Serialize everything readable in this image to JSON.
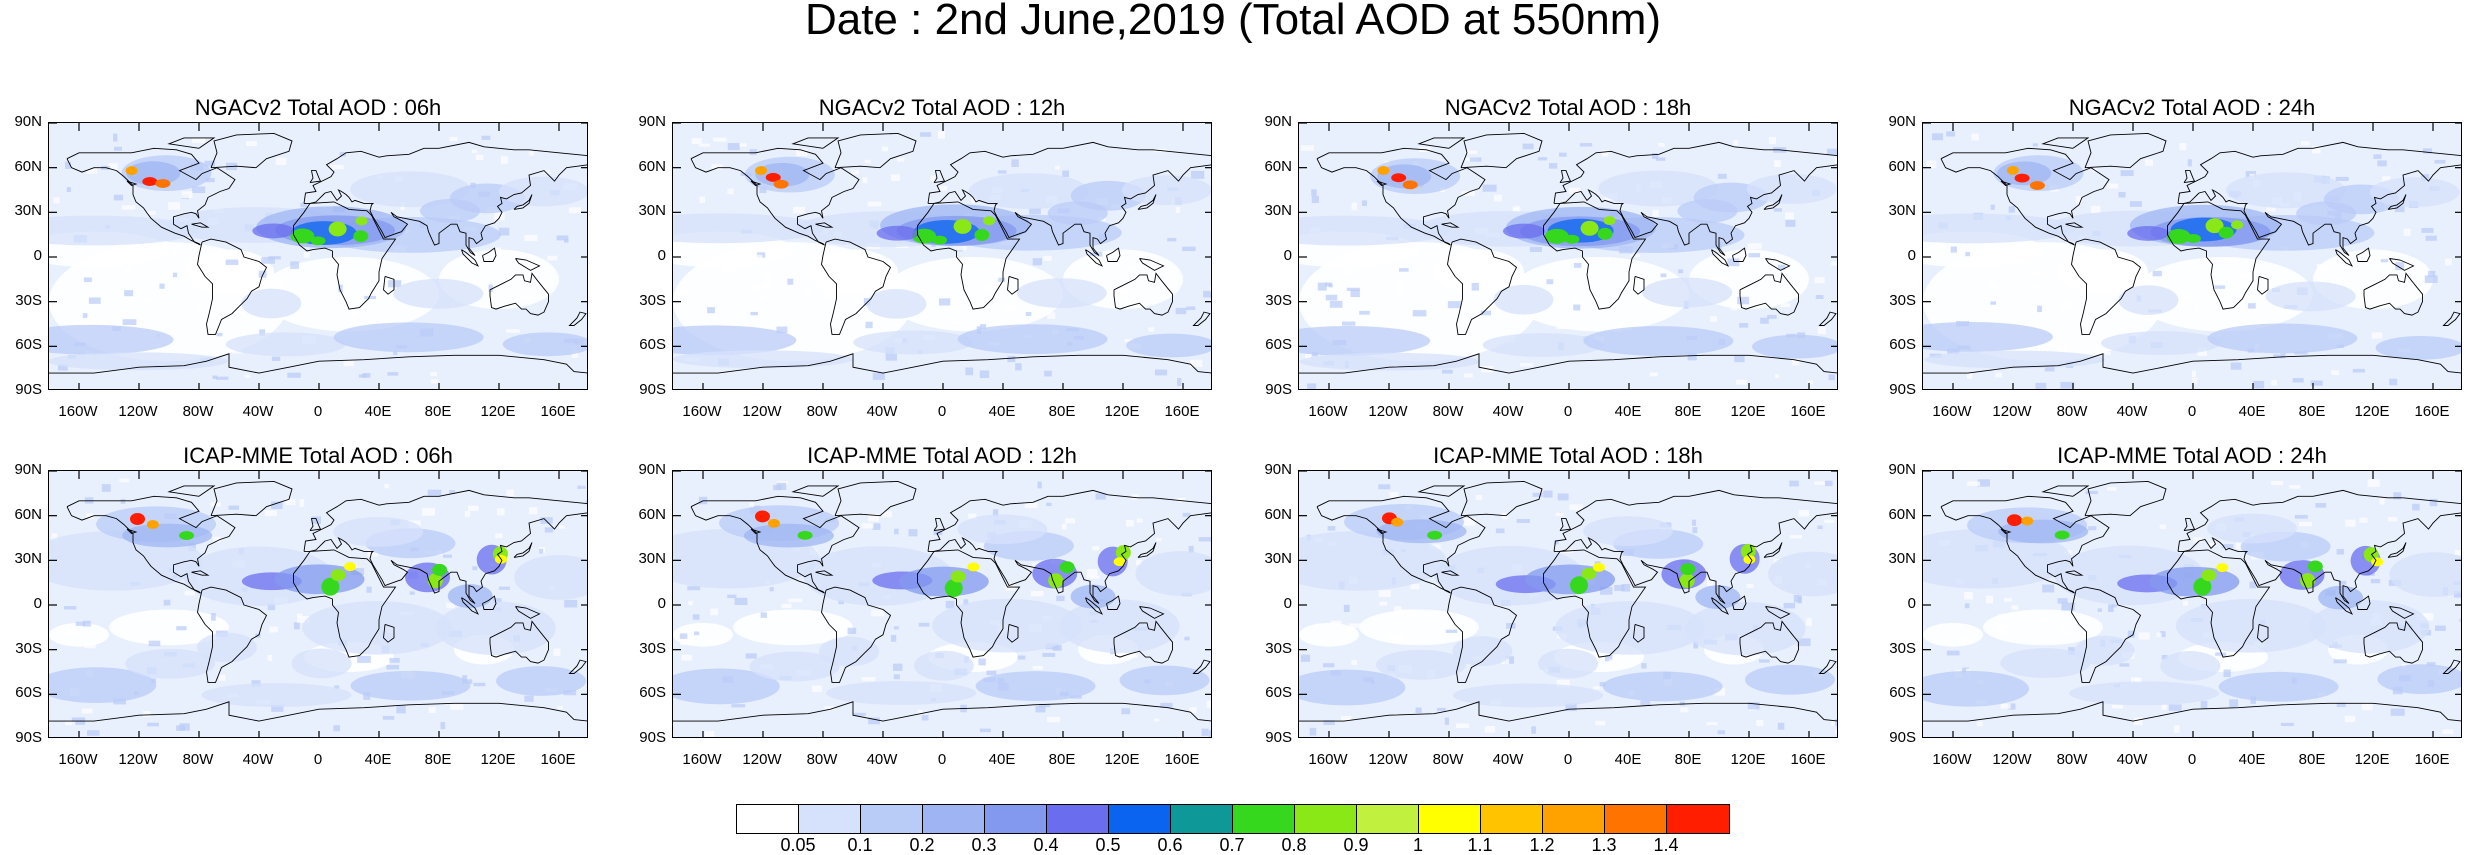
{
  "title": "Date : 2nd June,2019 (Total AOD at 550nm)",
  "lat_labels": [
    "90N",
    "60N",
    "30N",
    "0",
    "30S",
    "60S",
    "90S"
  ],
  "lon_labels": [
    "160W",
    "120W",
    "80W",
    "40W",
    "0",
    "40E",
    "80E",
    "120E",
    "160E"
  ],
  "panels": [
    {
      "title": "NGACv2 Total AOD : 06h",
      "model": "NGACv2",
      "hour": "06h"
    },
    {
      "title": "NGACv2 Total AOD : 12h",
      "model": "NGACv2",
      "hour": "12h"
    },
    {
      "title": "NGACv2 Total AOD : 18h",
      "model": "NGACv2",
      "hour": "18h"
    },
    {
      "title": "NGACv2 Total AOD : 24h",
      "model": "NGACv2",
      "hour": "24h"
    },
    {
      "title": "ICAP-MME Total AOD : 06h",
      "model": "ICAP-MME",
      "hour": "06h"
    },
    {
      "title": "ICAP-MME Total AOD : 12h",
      "model": "ICAP-MME",
      "hour": "12h"
    },
    {
      "title": "ICAP-MME Total AOD : 18h",
      "model": "ICAP-MME",
      "hour": "18h"
    },
    {
      "title": "ICAP-MME Total AOD : 24h",
      "model": "ICAP-MME",
      "hour": "24h"
    }
  ],
  "colorbar": {
    "labels": [
      "0.05",
      "0.1",
      "0.2",
      "0.3",
      "0.4",
      "0.5",
      "0.6",
      "0.7",
      "0.8",
      "0.9",
      "1",
      "1.1",
      "1.2",
      "1.3",
      "1.4"
    ],
    "colors": [
      "#ffffff",
      "#d6e2fb",
      "#b9cbf7",
      "#9fb5f3",
      "#8399ef",
      "#6a6ded",
      "#0a64ef",
      "#0e9898",
      "#36d81e",
      "#8ae816",
      "#c2f03e",
      "#ffff00",
      "#ffc300",
      "#ffa200",
      "#ff7400",
      "#ff1e00"
    ]
  }
}
